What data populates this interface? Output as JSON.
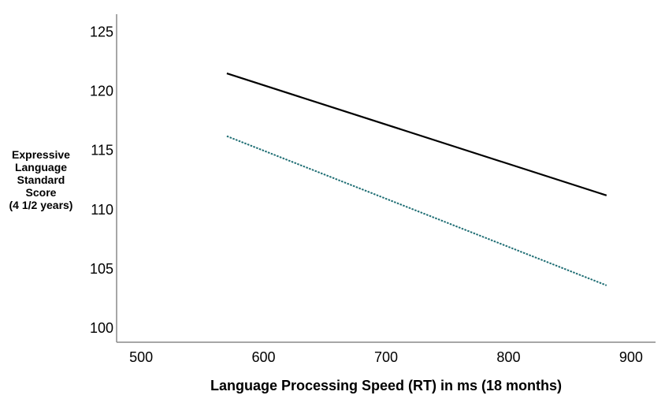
{
  "chart_data": {
    "type": "line",
    "xlabel": "Language Processing Speed (RT) in ms (18 months)",
    "ylabel_lines": [
      "Expressive",
      "Language",
      "Standard",
      "Score",
      "(4 1/2 years)"
    ],
    "xlim": [
      480,
      920
    ],
    "ylim": [
      98.8,
      126.5
    ],
    "x_ticks": [
      500,
      600,
      700,
      800,
      900
    ],
    "y_ticks": [
      100,
      105,
      110,
      115,
      120,
      125
    ],
    "grid": false,
    "legend": "none",
    "series": [
      {
        "x": [
          570,
          880
        ],
        "y": [
          121.5,
          111.2
        ],
        "color": "#000000",
        "style": "solid"
      },
      {
        "x": [
          570,
          880
        ],
        "y": [
          116.2,
          103.6
        ],
        "color": "#1f6e74",
        "style": "dotted"
      }
    ]
  }
}
